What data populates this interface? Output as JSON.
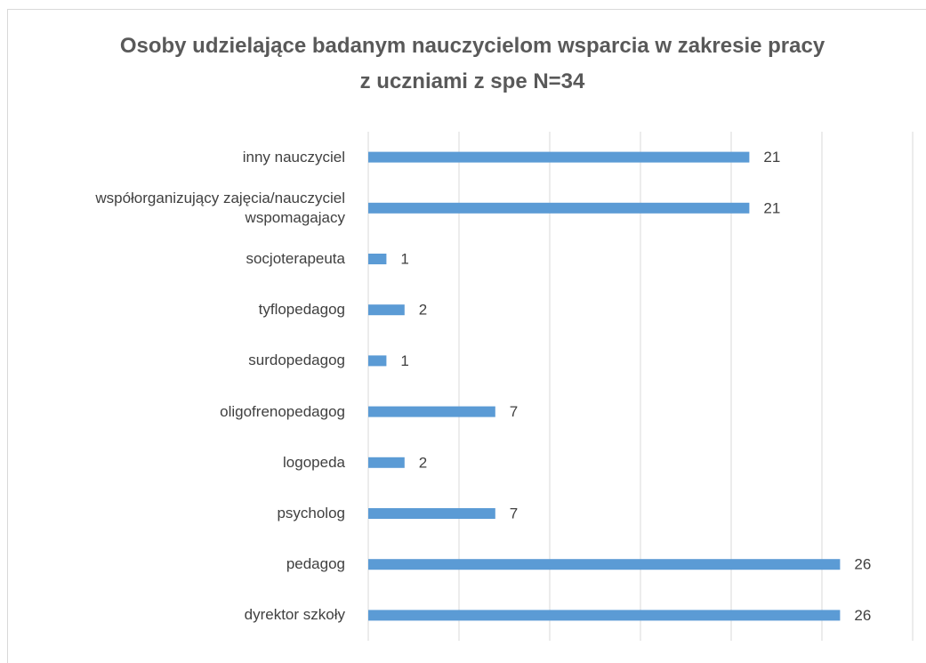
{
  "chart_data": {
    "type": "barh",
    "title": "Osoby udzielające badanym nauczycielom wsparcia w zakresie pracy z uczniami z spe N=34",
    "categories": [
      "inny nauczyciel",
      "współorganizujący zajęcia/nauczyciel wspomagajacy",
      "socjoterapeuta",
      "tyflopedagog",
      "surdopedagog",
      "oligofrenopedagog",
      "logopeda",
      "psycholog",
      "pedagog",
      "dyrektor szkoły"
    ],
    "values": [
      21,
      21,
      1,
      2,
      1,
      7,
      2,
      7,
      26,
      26
    ],
    "color": "#5b9bd5",
    "xlim": [
      0,
      30
    ],
    "xticks": [
      0,
      5,
      10,
      15,
      20,
      25,
      30
    ],
    "grid": true
  }
}
